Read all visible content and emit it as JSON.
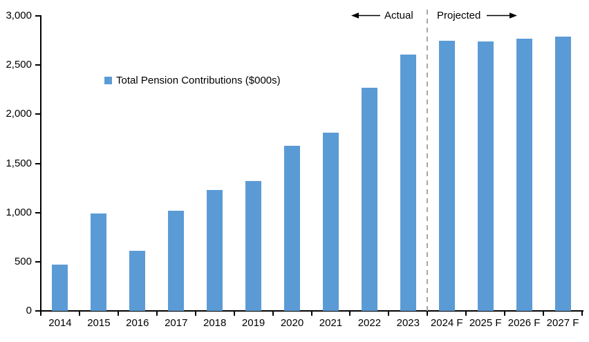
{
  "chart_data": {
    "type": "bar",
    "legend": "Total Pension Contributions ($000s)",
    "categories": [
      "2014",
      "2015",
      "2016",
      "2017",
      "2018",
      "2019",
      "2020",
      "2021",
      "2022",
      "2023",
      "2024 F",
      "2025 F",
      "2026 F",
      "2027 F"
    ],
    "values": [
      470,
      990,
      610,
      1020,
      1230,
      1320,
      1680,
      1810,
      2270,
      2610,
      2750,
      2740,
      2770,
      2790
    ],
    "ylim": [
      0,
      3000
    ],
    "ytick_step": 500,
    "ytick_labels": [
      "0",
      "500",
      "1,000",
      "1,500",
      "2,000",
      "2,500",
      "3,000"
    ],
    "annotations": {
      "actual": "Actual",
      "projected": "Projected"
    },
    "divider_before_category": "2024 F",
    "bar_color": "#5B9BD5",
    "divider_color": "#A6A6A6",
    "axis_color": "#000000",
    "grid": false,
    "legend_position": "inside-upper-left"
  }
}
